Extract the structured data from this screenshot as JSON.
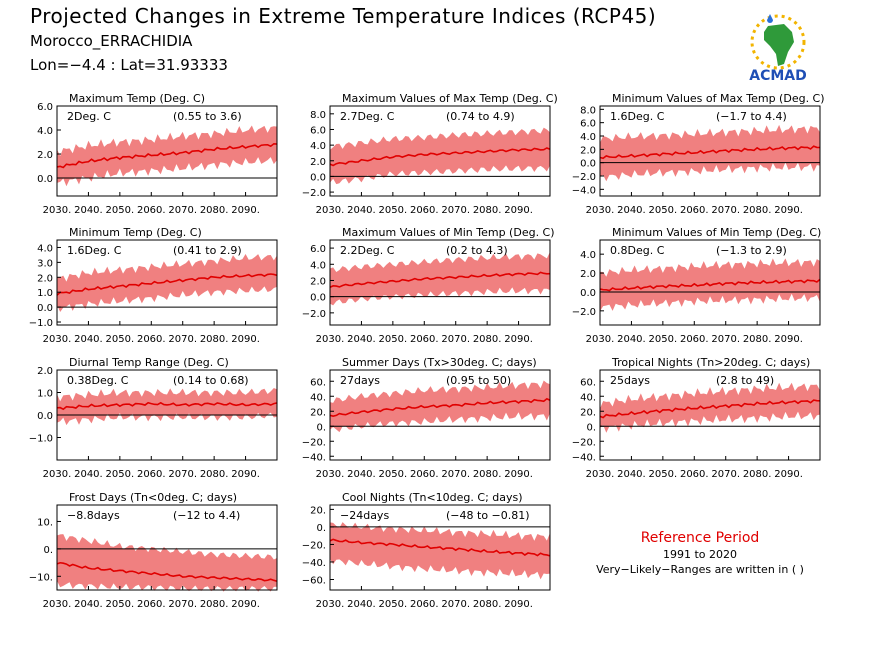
{
  "header": {
    "title": "Projected Changes in Extreme Temperature Indices (RCP45)",
    "station": "Morocco_ERRACHIDIA",
    "coords": "Lon=−4.4 : Lat=31.93333",
    "logo_text": "ACMAD"
  },
  "reference": {
    "title": "Reference Period",
    "years": "1991 to 2020",
    "note": "Very−Likely−Ranges are written in ( )"
  },
  "colors": {
    "band": "#f08080",
    "line": "#e00000",
    "zero": "#000000"
  },
  "chart_data": [
    {
      "type": "area",
      "title": "Maximum Temp (Deg. C)",
      "median_label": "2Deg. C",
      "range_label": "(0.55 to 3.6)",
      "xlim": [
        2030,
        2100
      ],
      "x_ticks": [
        "2030.",
        "2040.",
        "2050.",
        "2060.",
        "2070.",
        "2080.",
        "2090."
      ],
      "ylim": [
        -1.5,
        6.0
      ],
      "y_ticks": [
        "0.0",
        "2.0",
        "4.0",
        "6.0"
      ],
      "x": [
        2030,
        2040,
        2050,
        2060,
        2070,
        2080,
        2090,
        2100
      ],
      "median": [
        0.9,
        1.4,
        1.7,
        1.9,
        2.1,
        2.4,
        2.6,
        2.8
      ],
      "lower": [
        -0.4,
        0.0,
        0.4,
        0.6,
        0.8,
        1.1,
        1.3,
        1.5
      ],
      "upper": [
        2.2,
        2.7,
        3.0,
        3.2,
        3.5,
        3.7,
        4.0,
        4.2
      ]
    },
    {
      "type": "area",
      "title": "Maximum Values of Max Temp (Deg. C)",
      "median_label": "2.7Deg. C",
      "range_label": "(0.74 to 4.9)",
      "xlim": [
        2030,
        2100
      ],
      "x_ticks": [
        "2030.",
        "2040.",
        "2050.",
        "2060.",
        "2070.",
        "2080.",
        "2090."
      ],
      "ylim": [
        -2.5,
        9.0
      ],
      "y_ticks": [
        "−2.0",
        "0.0",
        "2.0",
        "4.0",
        "6.0",
        "8.0"
      ],
      "x": [
        2030,
        2040,
        2050,
        2060,
        2070,
        2080,
        2090,
        2100
      ],
      "median": [
        1.5,
        2.0,
        2.5,
        2.8,
        3.0,
        3.2,
        3.4,
        3.5
      ],
      "lower": [
        -0.8,
        -0.3,
        0.3,
        0.5,
        0.7,
        0.9,
        1.0,
        1.1
      ],
      "upper": [
        3.8,
        4.3,
        4.8,
        5.0,
        5.3,
        5.5,
        5.7,
        5.9
      ]
    },
    {
      "type": "area",
      "title": "Minimum Values of Max Temp (Deg. C)",
      "median_label": "1.6Deg. C",
      "range_label": "(−1.7 to 4.4)",
      "xlim": [
        2030,
        2100
      ],
      "x_ticks": [
        "2030.",
        "2040.",
        "2050.",
        "2060.",
        "2070.",
        "2080.",
        "2090."
      ],
      "ylim": [
        -5.0,
        8.5
      ],
      "y_ticks": [
        "−4.0",
        "−2.0",
        "0.0",
        "2.0",
        "4.0",
        "6.0",
        "8.0"
      ],
      "x": [
        2030,
        2040,
        2050,
        2060,
        2070,
        2080,
        2090,
        2100
      ],
      "median": [
        0.8,
        1.0,
        1.3,
        1.5,
        1.8,
        2.0,
        2.2,
        2.3
      ],
      "lower": [
        -2.2,
        -1.8,
        -1.5,
        -1.3,
        -1.0,
        -0.8,
        -0.7,
        -0.6
      ],
      "upper": [
        3.6,
        3.9,
        4.1,
        4.3,
        4.6,
        4.8,
        5.0,
        5.2
      ]
    },
    {
      "type": "area",
      "title": "Minimum Temp (Deg. C)",
      "median_label": "1.6Deg. C",
      "range_label": "(0.41 to 2.9)",
      "xlim": [
        2030,
        2100
      ],
      "x_ticks": [
        "2030.",
        "2040.",
        "2050.",
        "2060.",
        "2070.",
        "2080.",
        "2090."
      ],
      "ylim": [
        -1.2,
        4.5
      ],
      "y_ticks": [
        "−1.0",
        "0.0",
        "1.0",
        "2.0",
        "3.0",
        "4.0"
      ],
      "x": [
        2030,
        2040,
        2050,
        2060,
        2070,
        2080,
        2090,
        2100
      ],
      "median": [
        0.9,
        1.2,
        1.4,
        1.6,
        1.8,
        2.0,
        2.1,
        2.2
      ],
      "lower": [
        -0.1,
        0.2,
        0.4,
        0.6,
        0.8,
        1.0,
        1.1,
        1.2
      ],
      "upper": [
        1.9,
        2.3,
        2.5,
        2.7,
        2.9,
        3.1,
        3.3,
        3.4
      ]
    },
    {
      "type": "area",
      "title": "Maximum Values of Min Temp (Deg. C)",
      "median_label": "2.2Deg. C",
      "range_label": "(0.2 to 4.3)",
      "xlim": [
        2030,
        2100
      ],
      "x_ticks": [
        "2030.",
        "2040.",
        "2050.",
        "2060.",
        "2070.",
        "2080.",
        "2090."
      ],
      "ylim": [
        -3.5,
        7.0
      ],
      "y_ticks": [
        "−2.0",
        "0.0",
        "2.0",
        "4.0",
        "6.0"
      ],
      "x": [
        2030,
        2040,
        2050,
        2060,
        2070,
        2080,
        2090,
        2100
      ],
      "median": [
        1.2,
        1.6,
        1.9,
        2.2,
        2.4,
        2.6,
        2.8,
        2.9
      ],
      "lower": [
        -0.8,
        -0.3,
        0.0,
        0.2,
        0.4,
        0.6,
        0.7,
        0.8
      ],
      "upper": [
        3.3,
        3.7,
        4.0,
        4.3,
        4.6,
        4.8,
        5.0,
        5.1
      ]
    },
    {
      "type": "area",
      "title": "Minimum Values of Min Temp (Deg. C)",
      "median_label": "0.8Deg. C",
      "range_label": "(−1.3 to 2.9)",
      "xlim": [
        2030,
        2100
      ],
      "x_ticks": [
        "2030.",
        "2040.",
        "2050.",
        "2060.",
        "2070.",
        "2080.",
        "2090."
      ],
      "ylim": [
        -3.5,
        5.5
      ],
      "y_ticks": [
        "−2.0",
        "0.0",
        "2.0",
        "4.0"
      ],
      "x": [
        2030,
        2040,
        2050,
        2060,
        2070,
        2080,
        2090,
        2100
      ],
      "median": [
        0.2,
        0.4,
        0.6,
        0.7,
        0.9,
        1.0,
        1.1,
        1.2
      ],
      "lower": [
        -1.6,
        -1.4,
        -1.2,
        -1.0,
        -0.9,
        -0.8,
        -0.7,
        -0.6
      ],
      "upper": [
        2.0,
        2.3,
        2.5,
        2.7,
        2.9,
        3.0,
        3.1,
        3.2
      ]
    },
    {
      "type": "area",
      "title": "Diurnal Temp Range (Deg. C)",
      "median_label": "0.38Deg. C",
      "range_label": "(0.14 to 0.68)",
      "xlim": [
        2030,
        2100
      ],
      "x_ticks": [
        "2030.",
        "2040.",
        "2050.",
        "2060.",
        "2070.",
        "2080.",
        "2090."
      ],
      "ylim": [
        -2.0,
        2.0
      ],
      "y_ticks": [
        "−1.0",
        "0.0",
        "1.0",
        "2.0"
      ],
      "x": [
        2030,
        2040,
        2050,
        2060,
        2070,
        2080,
        2090,
        2100
      ],
      "median": [
        0.3,
        0.4,
        0.45,
        0.5,
        0.45,
        0.5,
        0.45,
        0.5
      ],
      "lower": [
        -0.3,
        -0.2,
        -0.1,
        -0.1,
        -0.1,
        -0.1,
        -0.1,
        0.0
      ],
      "upper": [
        0.8,
        0.9,
        1.0,
        1.0,
        1.0,
        1.0,
        1.0,
        1.1
      ]
    },
    {
      "type": "area",
      "title": "Summer Days (Tx>30deg. C; days)",
      "median_label": "27days",
      "range_label": "(0.95 to 50)",
      "xlim": [
        2030,
        2100
      ],
      "x_ticks": [
        "2030.",
        "2040.",
        "2050.",
        "2060.",
        "2070.",
        "2080.",
        "2090."
      ],
      "ylim": [
        -45,
        75
      ],
      "y_ticks": [
        "−40.",
        "−20.",
        "0.",
        "20.",
        "40.",
        "60."
      ],
      "x": [
        2030,
        2040,
        2050,
        2060,
        2070,
        2080,
        2090,
        2100
      ],
      "median": [
        14,
        19,
        23,
        26,
        28,
        31,
        33,
        35
      ],
      "lower": [
        -5,
        0,
        4,
        6,
        9,
        11,
        13,
        14
      ],
      "upper": [
        34,
        40,
        44,
        48,
        50,
        52,
        55,
        57
      ]
    },
    {
      "type": "area",
      "title": "Tropical Nights (Tn>20deg. C; days)",
      "median_label": "25days",
      "range_label": "(2.8 to 49)",
      "xlim": [
        2030,
        2100
      ],
      "x_ticks": [
        "2030.",
        "2040.",
        "2050.",
        "2060.",
        "2070.",
        "2080.",
        "2090."
      ],
      "ylim": [
        -45,
        75
      ],
      "y_ticks": [
        "−40.",
        "−20.",
        "0.",
        "20.",
        "40.",
        "60."
      ],
      "x": [
        2030,
        2040,
        2050,
        2060,
        2070,
        2080,
        2090,
        2100
      ],
      "median": [
        13,
        17,
        21,
        24,
        27,
        30,
        32,
        34
      ],
      "lower": [
        -3,
        1,
        4,
        7,
        9,
        11,
        13,
        14
      ],
      "upper": [
        30,
        36,
        40,
        44,
        47,
        50,
        52,
        54
      ]
    },
    {
      "type": "area",
      "title": "Frost Days (Tn<0deg. C; days)",
      "median_label": "−8.8days",
      "range_label": "(−12 to 4.4)",
      "xlim": [
        2030,
        2100
      ],
      "x_ticks": [
        "2030.",
        "2040.",
        "2050.",
        "2060.",
        "2070.",
        "2080.",
        "2090."
      ],
      "ylim": [
        -15,
        16
      ],
      "y_ticks": [
        "−10.",
        "0.",
        "10."
      ],
      "x": [
        2030,
        2040,
        2050,
        2060,
        2070,
        2080,
        2090,
        2100
      ],
      "median": [
        -5,
        -7,
        -8,
        -9,
        -10,
        -10.5,
        -11,
        -11.5
      ],
      "lower": [
        -13,
        -13.5,
        -14,
        -14,
        -14.5,
        -14.5,
        -14.5,
        -14.5
      ],
      "upper": [
        5,
        3,
        1,
        0,
        -1,
        -2,
        -2.5,
        -3
      ]
    },
    {
      "type": "area",
      "title": "Cool Nights (Tn<10deg. C; days)",
      "median_label": "−24days",
      "range_label": "(−48 to −0.81)",
      "xlim": [
        2030,
        2100
      ],
      "x_ticks": [
        "2030.",
        "2040.",
        "2050.",
        "2060.",
        "2070.",
        "2080.",
        "2090."
      ],
      "ylim": [
        -72,
        25
      ],
      "y_ticks": [
        "−60.",
        "−40.",
        "−20.",
        "0.",
        "20."
      ],
      "x": [
        2030,
        2040,
        2050,
        2060,
        2070,
        2080,
        2090,
        2100
      ],
      "median": [
        -15,
        -18,
        -20,
        -23,
        -25,
        -28,
        -30,
        -32
      ],
      "lower": [
        -38,
        -42,
        -45,
        -48,
        -50,
        -52,
        -54,
        -55
      ],
      "upper": [
        3,
        0,
        -2,
        -4,
        -6,
        -8,
        -10,
        -11
      ]
    }
  ]
}
